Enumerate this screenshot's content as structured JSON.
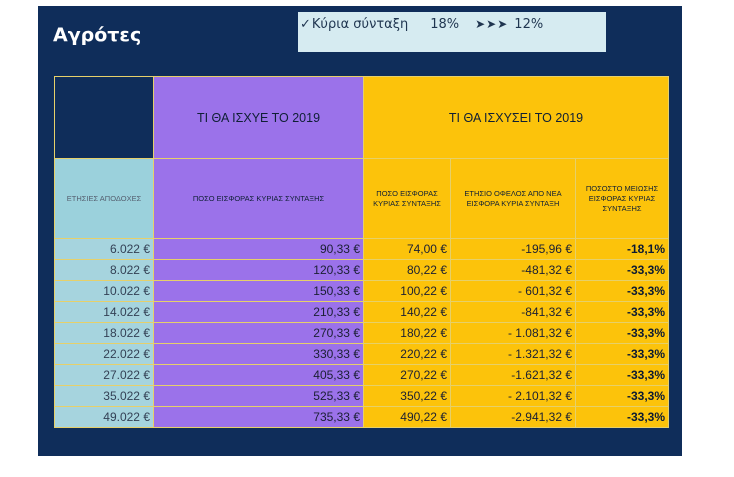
{
  "title": "Αγρότες",
  "pension": {
    "check": "✓",
    "label": "Κύρια σύνταξη",
    "old_rate": "18%",
    "arrows": "➤➤➤",
    "new_rate": "12%"
  },
  "table": {
    "header_2019_current": "ΤΙ ΘΑ ΙΣΧΥΕ ΤΟ 2019",
    "header_2019_new": "ΤΙ ΘΑ ΙΣΧΥΣΕΙ ΤΟ 2019",
    "columns": [
      "ΕΤΗΣΙΕΣ ΑΠΟΔΟΧΕΣ",
      "ΠΟΣΟ ΕΙΣΦΟΡΑΣ ΚΥΡΙΑΣ ΣΥΝΤΑΞΗΣ",
      "ΠΟΣΟ ΕΙΣΦΟΡΑΣ ΚΥΡΙΑΣ ΣΥΝΤΑΞΗΣ",
      "ΕΤΗΣΙΟ ΟΦΕΛΟΣ ΑΠΟ ΝΕΑ ΕΙΣΦΟΡΑ ΚΥΡΙΑ ΣΥΝΤΑΞΗ",
      "ΠΟΣΟΣΤΟ ΜΕΙΩΣΗΣ ΕΙΣΦΟΡΑΣ ΚΥΡΙΑΣ ΣΥΝΤΑΞΗΣ"
    ],
    "rows": [
      [
        "6.022 €",
        "90,33 €",
        "74,00 €",
        "-195,96 €",
        "-18,1%"
      ],
      [
        "8.022 €",
        "120,33 €",
        "80,22 €",
        "-481,32 €",
        "-33,3%"
      ],
      [
        "10.022 €",
        "150,33 €",
        "100,22 €",
        "- 601,32 €",
        "-33,3%"
      ],
      [
        "14.022 €",
        "210,33 €",
        "140,22 €",
        "-841,32 €",
        "-33,3%"
      ],
      [
        "18.022 €",
        "270,33 €",
        "180,22 €",
        "- 1.081,32 €",
        "-33,3%"
      ],
      [
        "22.022 €",
        "330,33 €",
        "220,22 €",
        "- 1.321,32 €",
        "-33,3%"
      ],
      [
        "27.022 €",
        "405,33 €",
        "270,22 €",
        "-1.621,32 €",
        "-33,3%"
      ],
      [
        "35.022 €",
        "525,33 €",
        "350,22 €",
        "- 2.101,32 €",
        "-33,3%"
      ],
      [
        "49.022 €",
        "735,33 €",
        "490,22 €",
        "-2.941,32 €",
        "-33,3%"
      ]
    ]
  },
  "colors": {
    "panel": "#0f2d5a",
    "purple": "#9b72ea",
    "yellow": "#fcc30b",
    "teal": "#a6d4de",
    "pension_box": "#d6ebf1"
  }
}
